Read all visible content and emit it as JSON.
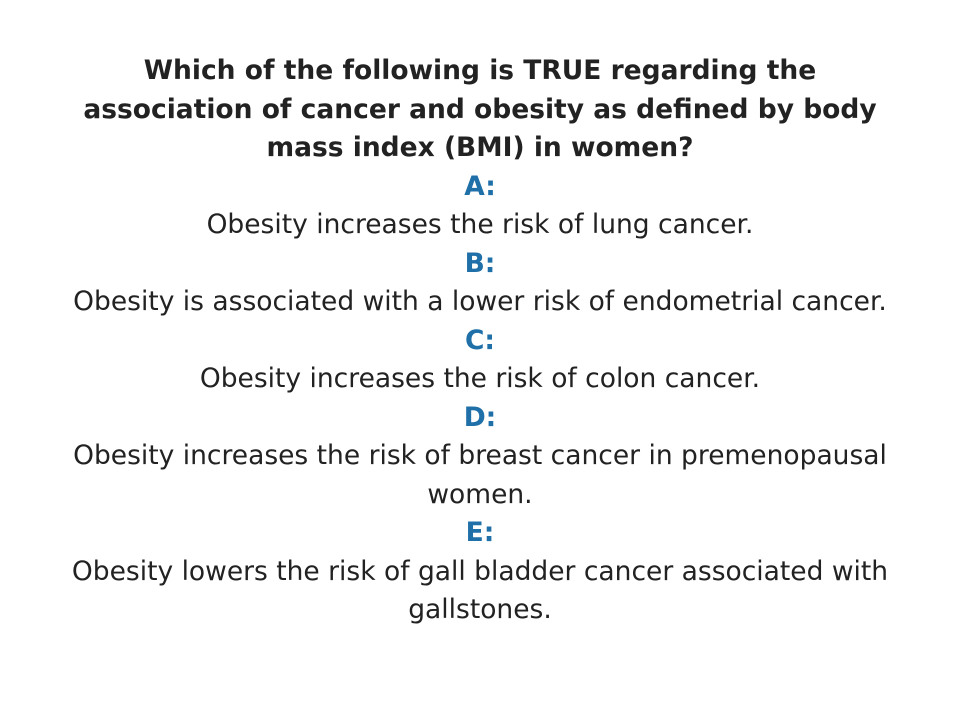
{
  "question": "Which of the following is TRUE regarding the association of cancer and obesity as defined by body mass index (BMI) in women?",
  "options": [
    {
      "letter": "A:",
      "text": "Obesity increases the risk of lung cancer."
    },
    {
      "letter": "B:",
      "text": "Obesity is associated with a lower risk of endometrial cancer."
    },
    {
      "letter": "C:",
      "text": "Obesity increases the risk of colon cancer."
    },
    {
      "letter": "D:",
      "text": "Obesity increases the risk of breast cancer in premenopausal women."
    },
    {
      "letter": "E:",
      "text": "Obesity lowers the risk of gall bladder cancer associated with gallstones."
    }
  ],
  "colors": {
    "accent": "#1f6fa8",
    "text": "#222222",
    "background": "#ffffff"
  }
}
